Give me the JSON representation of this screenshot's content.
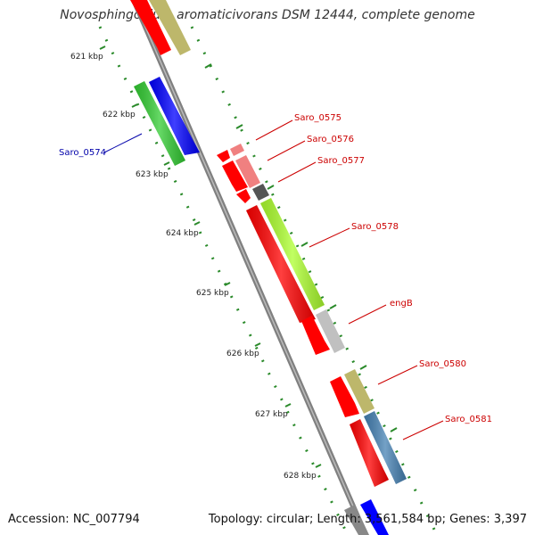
{
  "title": "Novosphingobium aromaticivorans DSM 12444, complete genome",
  "accession_text": "Accession: NC_007794",
  "topology_text": "Topology: circular; Length: 3,561,584 bp; Genes: 3,397",
  "scale_labels": [
    "621 kbp",
    "622 kbp",
    "623 kbp",
    "624 kbp",
    "625 kbp",
    "626 kbp",
    "627 kbp",
    "628 kbp"
  ],
  "gene_labels": [
    {
      "name": "Saro_0574",
      "color": "#0000aa"
    },
    {
      "name": "Saro_0575",
      "color": "#cc0000"
    },
    {
      "name": "Saro_0576",
      "color": "#cc0000"
    },
    {
      "name": "Saro_0577",
      "color": "#cc0000"
    },
    {
      "name": "Saro_0578",
      "color": "#cc0000"
    },
    {
      "name": "engB",
      "color": "#cc0000"
    },
    {
      "name": "Saro_0580",
      "color": "#cc0000"
    },
    {
      "name": "Saro_0581",
      "color": "#cc0000"
    }
  ],
  "colors": {
    "backbone": "#808080",
    "scale_dots": "#2a8a2a",
    "red": "#ff0000",
    "khaki": "#bdb76b",
    "green": "#33cc33",
    "blue": "#0000ff",
    "pink": "#f08080",
    "darkgray": "#555555",
    "lime": "#adff2f",
    "lightgray": "#c0c0c0",
    "steelblue": "#4682b4"
  }
}
